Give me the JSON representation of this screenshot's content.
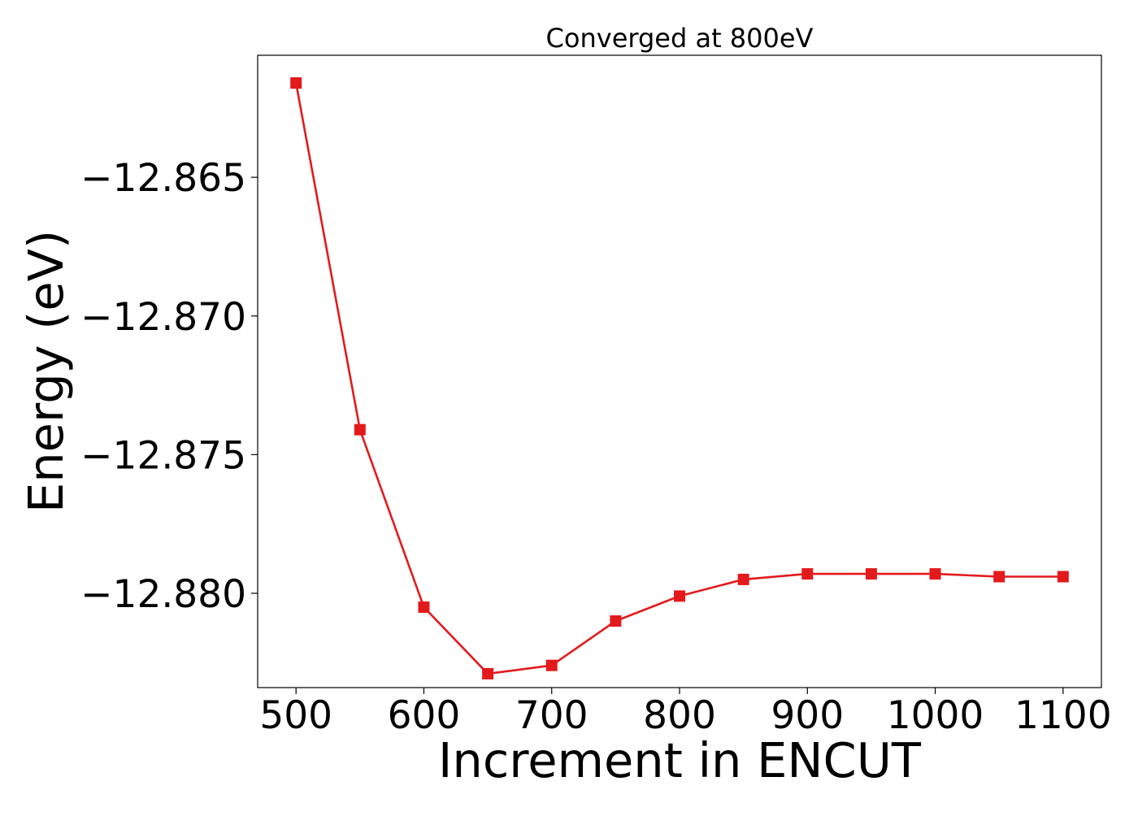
{
  "chart_data": {
    "type": "line",
    "title": "Converged at 800eV",
    "xlabel": "Increment in ENCUT",
    "ylabel": "Energy (eV)",
    "xlim": [
      470,
      1130
    ],
    "ylim": [
      -12.8834,
      -12.8606
    ],
    "xticks": [
      500,
      600,
      700,
      800,
      900,
      1000,
      1100
    ],
    "xtick_labels": [
      "500",
      "600",
      "700",
      "800",
      "900",
      "1000",
      "1100"
    ],
    "yticks": [
      -12.865,
      -12.87,
      -12.875,
      -12.88
    ],
    "ytick_labels": [
      "−12.865",
      "−12.870",
      "−12.875",
      "−12.880"
    ],
    "grid": false,
    "series": [
      {
        "color": "#e31a1c",
        "marker": "square",
        "x": [
          500,
          550,
          600,
          650,
          700,
          750,
          800,
          850,
          900,
          950,
          1000,
          1050,
          1100
        ],
        "y": [
          -12.8616,
          -12.8741,
          -12.8805,
          -12.8829,
          -12.8826,
          -12.881,
          -12.8801,
          -12.8795,
          -12.8793,
          -12.8793,
          -12.8793,
          -12.8794,
          -12.8794
        ]
      }
    ]
  }
}
